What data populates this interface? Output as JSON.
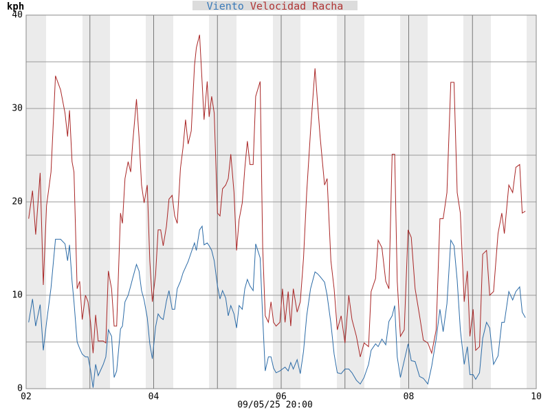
{
  "chart_data": {
    "type": "line",
    "title_color": "#dcdcdc",
    "y_label": "kph",
    "annotation": "09/05/25 20:00",
    "xlim": [
      2,
      10
    ],
    "ylim": [
      0,
      40
    ],
    "xticks": [
      {
        "value": 2,
        "label": "02"
      },
      {
        "value": 3,
        "label": null
      },
      {
        "value": 4,
        "label": "04"
      },
      {
        "value": 5,
        "label": null
      },
      {
        "value": 6,
        "label": "06"
      },
      {
        "value": 7,
        "label": null
      },
      {
        "value": 8,
        "label": "08"
      },
      {
        "value": 9,
        "label": null
      },
      {
        "value": 10,
        "label": "10"
      }
    ],
    "yticks": [
      0,
      {
        "value": 5,
        "label": null
      },
      10,
      {
        "value": 15,
        "label": null
      },
      20,
      {
        "value": 25,
        "label": null
      },
      30,
      {
        "value": 35,
        "label": null
      },
      40
    ],
    "grid": true,
    "x": [
      2.04,
      2.1,
      2.15,
      2.22,
      2.27,
      2.32,
      2.39,
      2.46,
      2.54,
      2.61,
      2.65,
      2.68,
      2.72,
      2.75,
      2.8,
      2.84,
      2.88,
      2.93,
      2.97,
      3.01,
      3.05,
      3.09,
      3.13,
      3.21,
      3.25,
      3.29,
      3.34,
      3.38,
      3.42,
      3.48,
      3.51,
      3.55,
      3.6,
      3.64,
      3.67,
      3.73,
      3.77,
      3.81,
      3.85,
      3.9,
      3.94,
      3.98,
      4.03,
      4.07,
      4.11,
      4.15,
      4.2,
      4.24,
      4.29,
      4.33,
      4.37,
      4.42,
      4.46,
      4.5,
      4.54,
      4.59,
      4.64,
      4.67,
      4.72,
      4.76,
      4.79,
      4.84,
      4.87,
      4.91,
      4.95,
      5.0,
      5.04,
      5.08,
      5.13,
      5.17,
      5.21,
      5.26,
      5.3,
      5.34,
      5.39,
      5.43,
      5.47,
      5.51,
      5.56,
      5.6,
      5.67,
      5.71,
      5.75,
      5.8,
      5.84,
      5.88,
      5.92,
      5.98,
      6.02,
      6.06,
      6.11,
      6.15,
      6.19,
      6.25,
      6.3,
      6.35,
      6.4,
      6.46,
      6.53,
      6.57,
      6.61,
      6.68,
      6.72,
      6.78,
      6.83,
      6.88,
      6.94,
      7.0,
      7.06,
      7.11,
      7.18,
      7.24,
      7.3,
      7.37,
      7.41,
      7.48,
      7.52,
      7.58,
      7.64,
      7.69,
      7.74,
      7.78,
      7.82,
      7.87,
      7.93,
      7.99,
      8.04,
      8.1,
      8.17,
      8.23,
      8.3,
      8.36,
      8.43,
      8.49,
      8.54,
      8.6,
      8.66,
      8.71,
      8.76,
      8.81,
      8.87,
      8.92,
      8.96,
      9.01,
      9.05,
      9.11,
      9.16,
      9.22,
      9.27,
      9.33,
      9.4,
      9.46,
      9.5,
      9.57,
      9.63,
      9.68,
      9.74,
      9.78,
      9.83
    ],
    "series": [
      {
        "name": "Viento",
        "color": "#2a6aa6",
        "label_color": "#3a7ab8",
        "values": [
          7.1,
          9.6,
          6.7,
          9,
          4.1,
          7.1,
          10.8,
          16,
          16,
          15.5,
          13.7,
          15.4,
          11.5,
          9.3,
          5,
          4.3,
          3.7,
          3.4,
          3.4,
          2,
          0.1,
          2.6,
          1.4,
          2.6,
          3.4,
          6.3,
          5.6,
          1.2,
          1.9,
          6.4,
          6.7,
          9.3,
          10,
          11,
          11.8,
          13.3,
          12.6,
          10.5,
          9.5,
          7.6,
          4.8,
          3.2,
          6.6,
          8,
          7.6,
          7.4,
          9.4,
          10.5,
          8.5,
          8.5,
          10.7,
          11.5,
          12.4,
          13,
          13.6,
          14.6,
          15.6,
          14.8,
          17,
          17.4,
          15.4,
          15.6,
          15.3,
          14.8,
          13.7,
          11,
          9.6,
          10.5,
          9.7,
          7.8,
          8.9,
          8,
          6.5,
          8.9,
          8.5,
          10.7,
          11.7,
          11,
          10.5,
          15.5,
          14,
          7.6,
          1.9,
          3.4,
          3.4,
          2.2,
          1.7,
          1.9,
          2.1,
          2.3,
          1.9,
          2.8,
          2.1,
          3.1,
          1.6,
          4,
          7.8,
          10.7,
          12.5,
          12.3,
          12,
          11.4,
          10,
          7,
          3.7,
          1.7,
          1.6,
          2.1,
          2.1,
          1.7,
          0.9,
          0.5,
          1.2,
          2.6,
          4.1,
          4.8,
          4.5,
          5.3,
          4.7,
          7.2,
          7.8,
          8.9,
          3.4,
          1.2,
          3,
          4.8,
          3,
          2.9,
          1.3,
          1.1,
          0.5,
          2.4,
          5.3,
          8.5,
          6.1,
          9.1,
          15.9,
          15.3,
          11.6,
          6.3,
          2.6,
          4.5,
          1.5,
          1.5,
          1,
          1.7,
          5.4,
          7.1,
          6.5,
          2.6,
          3.5,
          7.1,
          7.1,
          10.4,
          9.5,
          10.4,
          10.9,
          8.2,
          7.6
        ]
      },
      {
        "name": "Velocidad Racha",
        "color": "#a82424",
        "label_color": "#b03434",
        "values": [
          18.2,
          21.2,
          16.5,
          23.1,
          11.1,
          19.6,
          23.2,
          33.5,
          32,
          29.5,
          27,
          29.8,
          24.3,
          23.2,
          10.7,
          11.5,
          7.4,
          10,
          9.3,
          7.1,
          3.8,
          7.9,
          5.1,
          5.1,
          4.9,
          12.6,
          10.7,
          6.7,
          6.7,
          18.8,
          17.7,
          22.5,
          24.3,
          23.2,
          26.2,
          31,
          27,
          21.8,
          19.9,
          21.8,
          13.7,
          9.3,
          12.2,
          17,
          17,
          15.3,
          17.4,
          20.3,
          20.7,
          18.5,
          17.7,
          23.6,
          25.8,
          28.8,
          26.2,
          27.6,
          34.6,
          36.5,
          37.9,
          32.8,
          28.8,
          32.9,
          29.1,
          31.3,
          29.5,
          18.8,
          18.5,
          21.4,
          21.8,
          22.5,
          25.1,
          21,
          14.8,
          18.1,
          19.9,
          23.6,
          26.5,
          24,
          24,
          31.3,
          32.9,
          15.1,
          7.8,
          7.1,
          9.3,
          7.1,
          6.7,
          7.1,
          10.7,
          7.1,
          10.4,
          6.7,
          10.7,
          8.2,
          9.3,
          14,
          21,
          27.6,
          34.3,
          30.6,
          27,
          21.8,
          22.5,
          13.7,
          10.7,
          6.3,
          7.8,
          4.9,
          10,
          7.4,
          5.6,
          3.4,
          4.9,
          4.5,
          10.4,
          11.8,
          15.9,
          15.1,
          11.5,
          10.7,
          25.1,
          25.1,
          11.5,
          5.6,
          6.3,
          17,
          16.2,
          10.7,
          7.8,
          5.2,
          4.9,
          3.8,
          6.3,
          18.2,
          18.2,
          21,
          32.8,
          32.8,
          21,
          18.8,
          9.3,
          12.6,
          5.6,
          8.5,
          4.1,
          4.5,
          14.4,
          14.8,
          10,
          10.4,
          16.6,
          18.8,
          16.6,
          21.8,
          21,
          23.7,
          24,
          18.8,
          19
        ]
      }
    ]
  }
}
